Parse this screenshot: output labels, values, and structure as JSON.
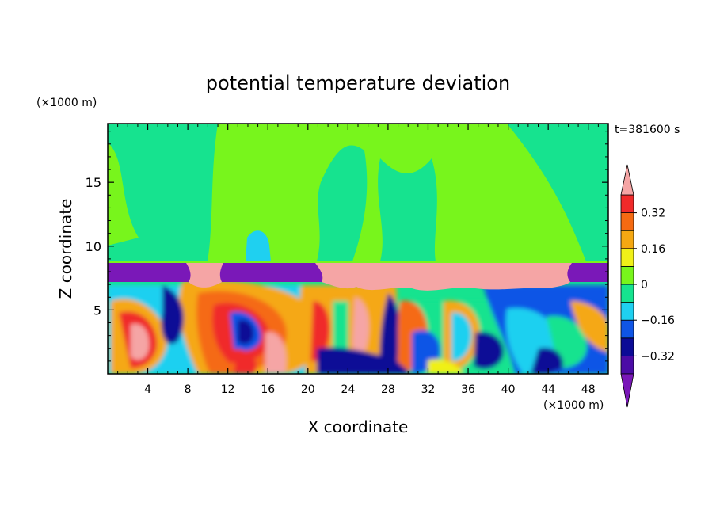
{
  "chart_data": {
    "type": "heatmap",
    "title": "potential temperature deviation",
    "xlabel": "X coordinate",
    "ylabel": "Z coordinate",
    "x_unit": "(×1000 m)",
    "y_unit": "(×1000 m)",
    "time_label": "t=381600 s",
    "xlim": [
      0,
      50
    ],
    "ylim": [
      0,
      19.6
    ],
    "x_ticks": [
      4,
      8,
      12,
      16,
      20,
      24,
      28,
      32,
      36,
      40,
      44,
      48
    ],
    "y_ticks": [
      5,
      10,
      15
    ],
    "colorbar": {
      "levels": [
        -0.4,
        -0.32,
        -0.24,
        -0.16,
        -0.08,
        0,
        0.08,
        0.16,
        0.24,
        0.32,
        0.4
      ],
      "labels": [
        "0.32",
        "0.16",
        "0",
        "−0.16",
        "−0.32"
      ],
      "label_values": [
        0.32,
        0.16,
        0,
        -0.16,
        -0.32
      ],
      "colors_bottom_to_top": [
        "#4b0ca6",
        "#0b0b96",
        "#0f55e6",
        "#1fd0f0",
        "#16e38f",
        "#78f51c",
        "#f0f018",
        "#f5a812",
        "#f56a12",
        "#f02a2a"
      ],
      "under_color": "#7a18b8",
      "over_color": "#f5a5a5"
    },
    "regions": {
      "upper_layer_z_range": [
        8.9,
        19.6
      ],
      "upper_layer_value": 0.04,
      "inversion_band_z_range": [
        7.4,
        8.9
      ],
      "inversion_band_values": [
        "above 0.4",
        "below -0.4"
      ],
      "lower_layer_z_range": [
        0,
        7.4
      ]
    }
  }
}
